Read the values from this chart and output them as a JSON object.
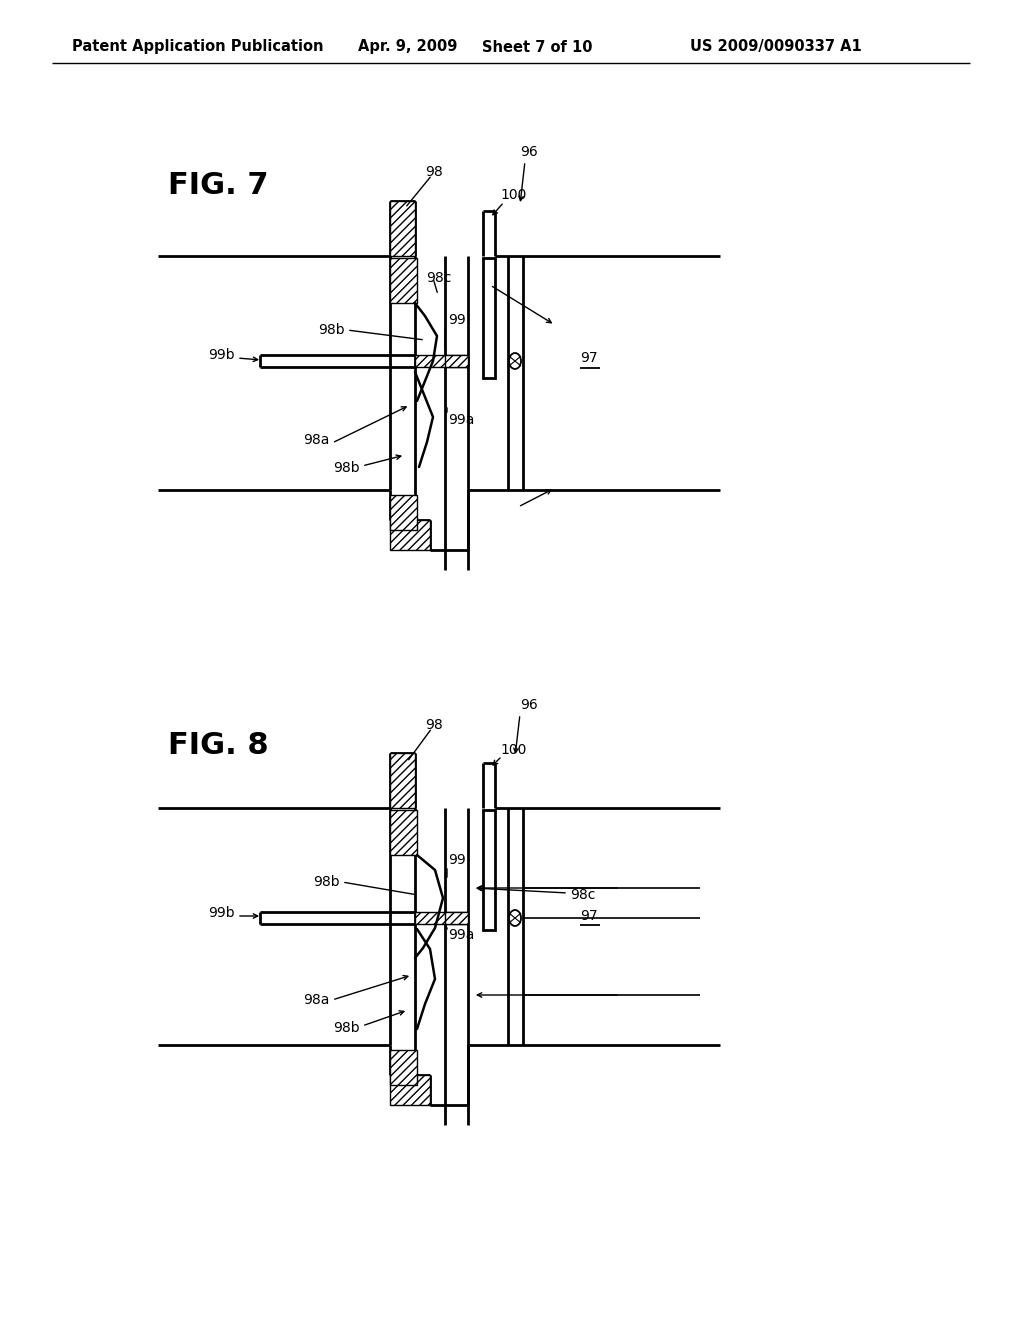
{
  "background_color": "#ffffff",
  "header_text": "Patent Application Publication",
  "header_date": "Apr. 9, 2009",
  "header_sheet": "Sheet 7 of 10",
  "header_patent": "US 2009/0090337 A1",
  "header_fontsize": 10.5,
  "fig7_label": "FIG. 7",
  "fig8_label": "FIG. 8",
  "line_color": "#000000",
  "annotation_fontsize": 10,
  "fig_label_fontsize": 22
}
